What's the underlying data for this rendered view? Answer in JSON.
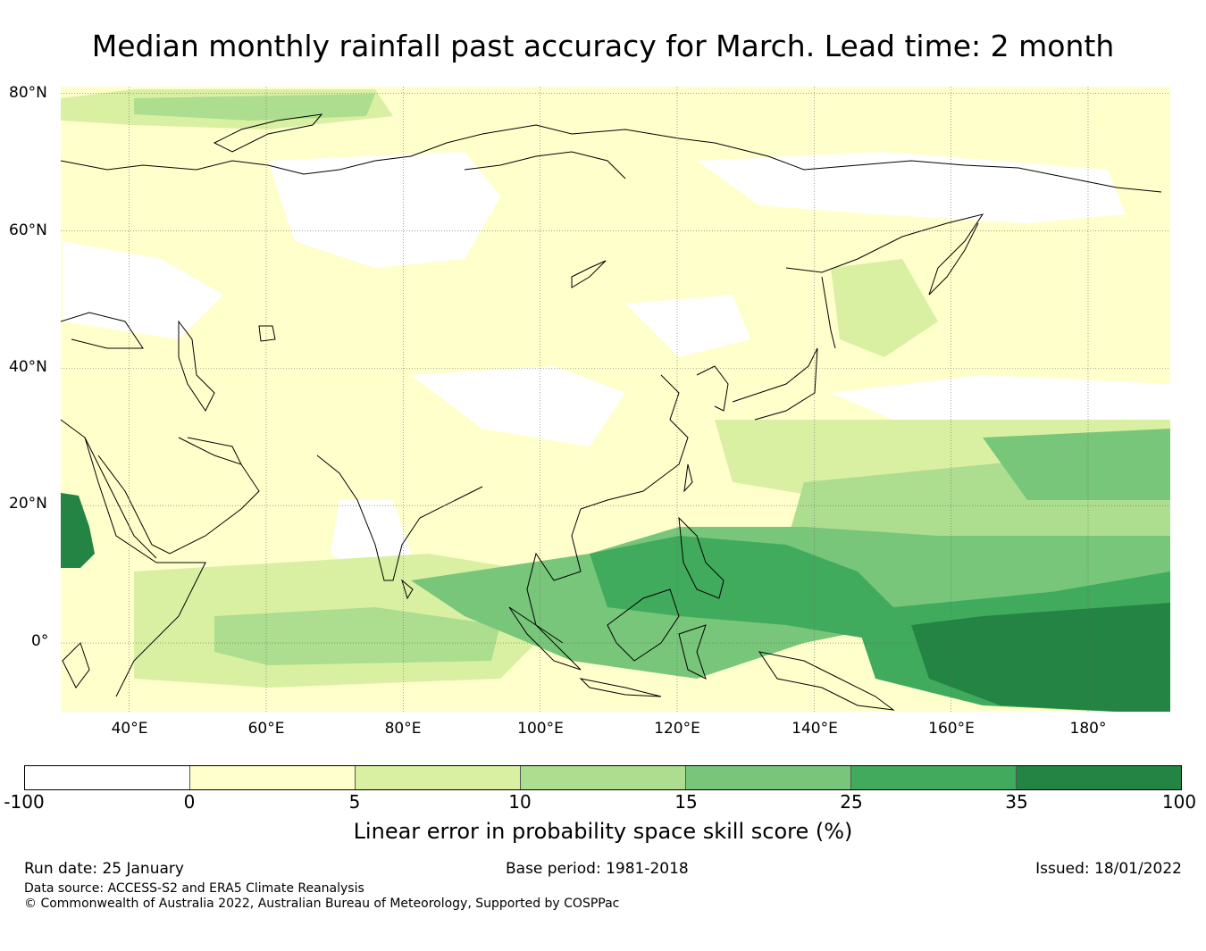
{
  "title": "Median monthly rainfall past accuracy for March. Lead time: 2 month",
  "map": {
    "lon_range": [
      30,
      192
    ],
    "lat_range": [
      -10,
      81
    ],
    "lat_labels": [
      "80°N",
      "60°N",
      "40°N",
      "20°N",
      "0°"
    ],
    "lat_values": [
      80,
      60,
      40,
      20,
      0
    ],
    "lon_labels": [
      "40°E",
      "60°E",
      "80°E",
      "100°E",
      "120°E",
      "140°E",
      "160°E",
      "180°"
    ],
    "lon_values": [
      40,
      60,
      80,
      100,
      120,
      140,
      160,
      180
    ]
  },
  "colorbar": {
    "boundaries": [
      "-100",
      "0",
      "5",
      "10",
      "15",
      "25",
      "35",
      "100"
    ],
    "colors": [
      "#ffffff",
      "#ffffcc",
      "#d9f0a3",
      "#addd8e",
      "#78c679",
      "#41ab5d",
      "#238443"
    ],
    "label": "Linear error in probability space skill score (%)"
  },
  "footer": {
    "run_date": "Run date: 25 January",
    "base_period": "Base period: 1981-2018",
    "issued": "Issued: 18/01/2022",
    "data_source": "Data source: ACCESS-S2 and ERA5 Climate Reanalysis",
    "copyright": "© Commonwealth of Australia 2022, Australian Bureau of Meteorology, Supported by COSPPac"
  }
}
